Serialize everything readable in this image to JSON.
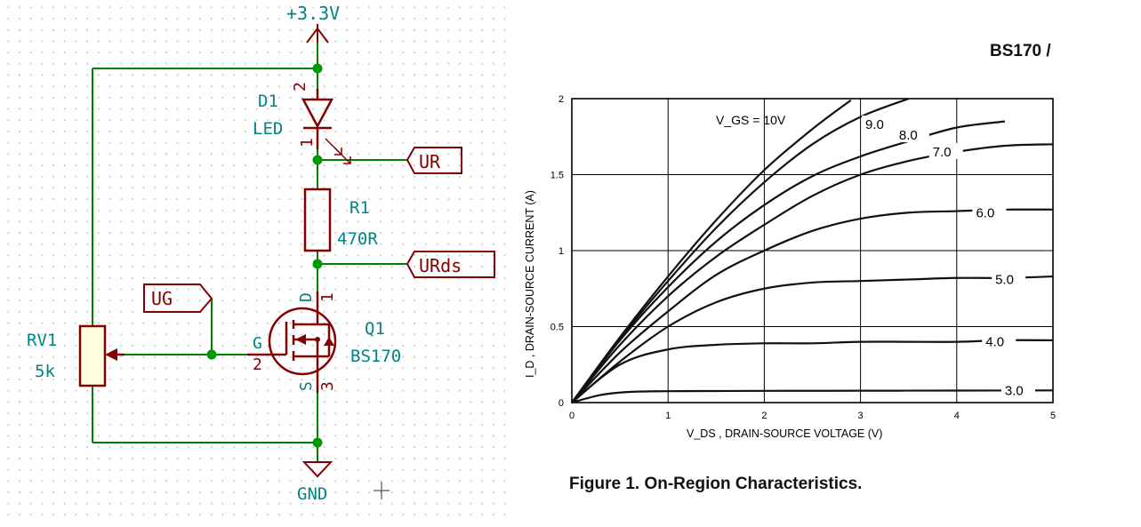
{
  "schematic": {
    "power_label": "+3.3V",
    "ground_label": "GND",
    "d1_ref": "D1",
    "d1_value": "LED",
    "d1_pin_top": "2",
    "d1_pin_bottom": "1",
    "r1_ref": "R1",
    "r1_value": "470R",
    "q1_ref": "Q1",
    "q1_value": "BS170",
    "q1_pin_g": "G",
    "q1_pin_g_num": "2",
    "q1_pin_d": "D",
    "q1_pin_d_num": "1",
    "q1_pin_s": "S",
    "q1_pin_s_num": "3",
    "rv1_ref": "RV1",
    "rv1_value": "5k",
    "label_ur": "UR",
    "label_urds": "URds",
    "label_ug": "UG",
    "colors": {
      "wire": "#007f00",
      "component": "#840000",
      "text": "#008484",
      "junction": "#009900"
    }
  },
  "chart_header": "BS170 /",
  "figure_caption": "Figure 1. On-Region Characteristics.",
  "chart_data": {
    "type": "line",
    "xlabel": "V_DS , DRAIN-SOURCE VOLTAGE (V)",
    "ylabel": "I_D , DRAIN-SOURCE CURRENT (A)",
    "xlim": [
      0,
      5
    ],
    "ylim": [
      0,
      2
    ],
    "x_ticks": [
      "0",
      "1",
      "2",
      "3",
      "4",
      "5"
    ],
    "y_ticks": [
      "0",
      "0.5",
      "1",
      "1.5",
      "2"
    ],
    "grid": true,
    "vgs_annotation": "V_GS = 10V",
    "series": [
      {
        "name": "10V",
        "x": [
          0,
          0.5,
          1,
          1.5,
          2,
          2.5,
          2.9
        ],
        "y": [
          0,
          0.43,
          0.83,
          1.2,
          1.53,
          1.8,
          1.99
        ]
      },
      {
        "name": "9.0",
        "x": [
          0,
          0.5,
          1,
          1.5,
          2,
          2.5,
          3.0,
          3.5
        ],
        "y": [
          0,
          0.42,
          0.8,
          1.15,
          1.45,
          1.7,
          1.88,
          2.0
        ]
      },
      {
        "name": "8.0",
        "x": [
          0,
          0.5,
          1,
          1.5,
          2,
          2.5,
          3,
          3.5,
          4.0,
          4.5
        ],
        "y": [
          0,
          0.41,
          0.76,
          1.06,
          1.3,
          1.49,
          1.62,
          1.72,
          1.81,
          1.85
        ]
      },
      {
        "name": "7.0",
        "x": [
          0,
          0.5,
          1,
          1.5,
          2,
          2.5,
          3,
          3.5,
          4,
          4.5,
          5
        ],
        "y": [
          0,
          0.38,
          0.7,
          0.96,
          1.17,
          1.36,
          1.5,
          1.59,
          1.65,
          1.69,
          1.7
        ]
      },
      {
        "name": "6.0",
        "x": [
          0,
          0.5,
          1,
          1.5,
          2,
          2.5,
          3,
          3.5,
          4,
          4.5,
          5
        ],
        "y": [
          0,
          0.33,
          0.6,
          0.84,
          1.0,
          1.13,
          1.21,
          1.25,
          1.26,
          1.27,
          1.27
        ]
      },
      {
        "name": "5.0",
        "x": [
          0,
          0.5,
          1,
          1.5,
          2,
          2.5,
          3,
          3.5,
          4,
          4.5,
          5
        ],
        "y": [
          0,
          0.27,
          0.5,
          0.66,
          0.75,
          0.79,
          0.8,
          0.81,
          0.82,
          0.82,
          0.83
        ]
      },
      {
        "name": "4.0",
        "x": [
          0,
          0.5,
          1,
          1.5,
          2,
          2.5,
          3,
          3.5,
          4,
          4.5,
          5
        ],
        "y": [
          0,
          0.25,
          0.35,
          0.38,
          0.39,
          0.39,
          0.4,
          0.4,
          0.4,
          0.41,
          0.41
        ]
      },
      {
        "name": "3.0",
        "x": [
          0,
          0.3,
          0.6,
          1,
          1.5,
          2,
          3,
          4,
          5
        ],
        "y": [
          0,
          0.05,
          0.07,
          0.075,
          0.076,
          0.077,
          0.078,
          0.079,
          0.08
        ]
      }
    ],
    "label_positions": [
      {
        "name": "10V",
        "x": 1.55,
        "y": 1.86
      },
      {
        "name": "9.0",
        "x": 3.05,
        "y": 1.83
      },
      {
        "name": "8.0",
        "x": 3.4,
        "y": 1.76
      },
      {
        "name": "7.0",
        "x": 3.75,
        "y": 1.65
      },
      {
        "name": "6.0",
        "x": 4.2,
        "y": 1.25
      },
      {
        "name": "5.0",
        "x": 4.4,
        "y": 0.81
      },
      {
        "name": "4.0",
        "x": 4.3,
        "y": 0.4
      },
      {
        "name": "3.0",
        "x": 4.5,
        "y": 0.08
      }
    ]
  }
}
